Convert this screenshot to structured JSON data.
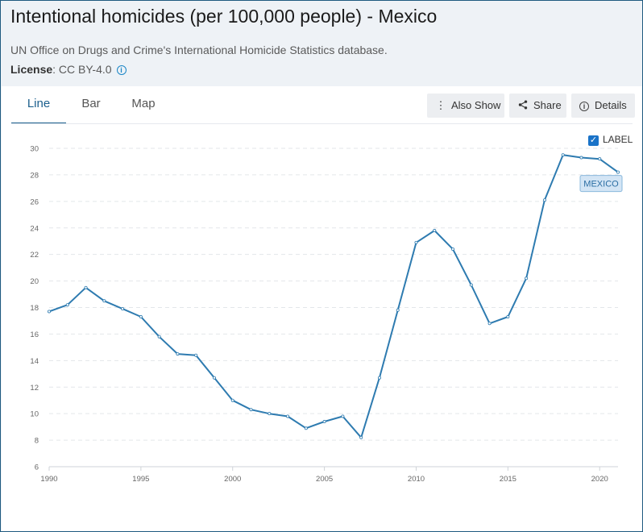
{
  "header": {
    "title": "Intentional homicides (per 100,000 people) - Mexico",
    "source": "UN Office on Drugs and Crime's International Homicide Statistics database.",
    "license_label": "License",
    "license_value": ": CC BY-4.0"
  },
  "tabs": [
    {
      "label": "Line",
      "active": true
    },
    {
      "label": "Bar",
      "active": false
    },
    {
      "label": "Map",
      "active": false
    }
  ],
  "actions": {
    "also_show": "Also Show",
    "share": "Share",
    "details": "Details"
  },
  "label_toggle": {
    "text": "LABEL",
    "checked": true
  },
  "colors": {
    "line": "#2e7bb0",
    "accent": "#1b5f8d",
    "tag_bg": "#d3e5f5"
  },
  "chart_data": {
    "type": "line",
    "title": "",
    "xlabel": "",
    "ylabel": "",
    "xlim": [
      1990,
      2021
    ],
    "ylim": [
      6,
      30
    ],
    "y_ticks": [
      6,
      8,
      10,
      12,
      14,
      16,
      18,
      20,
      22,
      24,
      26,
      28,
      30
    ],
    "x_ticks": [
      1990,
      1995,
      2000,
      2005,
      2010,
      2015,
      2020
    ],
    "grid": "horizontal dashed",
    "series": [
      {
        "name": "MEXICO",
        "x": [
          1990,
          1991,
          1992,
          1993,
          1994,
          1995,
          1996,
          1997,
          1998,
          1999,
          2000,
          2001,
          2002,
          2003,
          2004,
          2005,
          2006,
          2007,
          2008,
          2009,
          2010,
          2011,
          2012,
          2013,
          2014,
          2015,
          2016,
          2017,
          2018,
          2019,
          2020,
          2021
        ],
        "values": [
          17.7,
          18.2,
          19.5,
          18.5,
          17.9,
          17.3,
          15.8,
          14.5,
          14.4,
          12.7,
          11.0,
          10.3,
          10.0,
          9.8,
          8.9,
          9.4,
          9.8,
          8.2,
          12.7,
          17.8,
          22.9,
          23.8,
          22.4,
          19.7,
          16.8,
          17.3,
          20.2,
          26.1,
          29.5,
          29.3,
          29.2,
          28.2
        ]
      }
    ]
  }
}
